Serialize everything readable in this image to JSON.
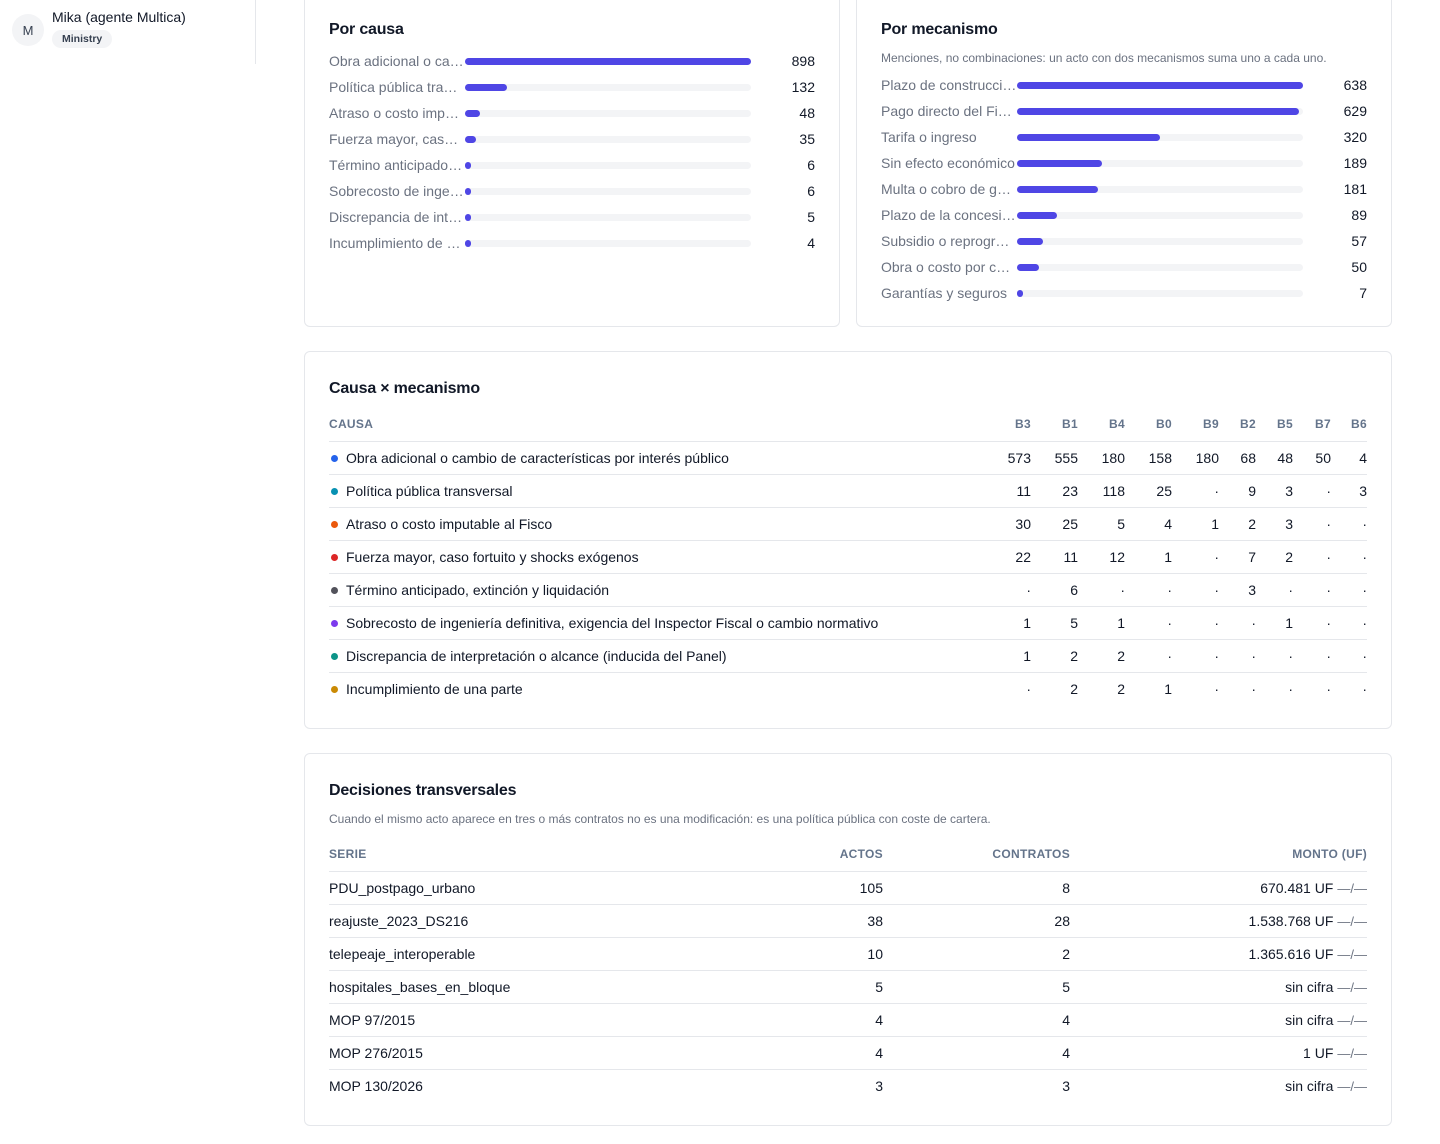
{
  "user": {
    "avatar_initial": "M",
    "name": "Mika (agente Multica)",
    "role": "Ministry"
  },
  "por_causa": {
    "title": "Por causa",
    "items": [
      {
        "label": "Obra adicional o cambio de características por interés público",
        "value": 898
      },
      {
        "label": "Política pública transversal",
        "value": 132
      },
      {
        "label": "Atraso o costo imputable al Fisco",
        "value": 48
      },
      {
        "label": "Fuerza mayor, caso fortuito y shocks exógenos",
        "value": 35
      },
      {
        "label": "Término anticipado, extinción y liquidación",
        "value": 6
      },
      {
        "label": "Sobrecosto de ingeniería definitiva",
        "value": 6
      },
      {
        "label": "Discrepancia de interpretación o alcance",
        "value": 5
      },
      {
        "label": "Incumplimiento de una parte",
        "value": 4
      }
    ]
  },
  "por_mecanismo": {
    "title": "Por mecanismo",
    "subtitle": "Menciones, no combinaciones: un acto con dos mecanismos suma uno a cada uno.",
    "items": [
      {
        "label": "Plazo de construcción",
        "value": 638
      },
      {
        "label": "Pago directo del Fisco",
        "value": 629
      },
      {
        "label": "Tarifa o ingreso",
        "value": 320
      },
      {
        "label": "Sin efecto económico",
        "value": 189
      },
      {
        "label": "Multa o cobro de garantía",
        "value": 181
      },
      {
        "label": "Plazo de la concesión",
        "value": 89
      },
      {
        "label": "Subsidio o reprogramación",
        "value": 57
      },
      {
        "label": "Obra o costo por cuenta del concesionario",
        "value": 50
      },
      {
        "label": "Garantías y seguros",
        "value": 7
      }
    ]
  },
  "matriz": {
    "title": "Causa × mecanismo",
    "header_causa": "CAUSA",
    "columns": [
      "B3",
      "B1",
      "B4",
      "B0",
      "B9",
      "B2",
      "B5",
      "B7",
      "B6"
    ],
    "rows": [
      {
        "color": "#2563eb",
        "label": "Obra adicional o cambio de características por interés público",
        "cells": [
          "573",
          "555",
          "180",
          "158",
          "180",
          "68",
          "48",
          "50",
          "4"
        ]
      },
      {
        "color": "#0891b2",
        "label": "Política pública transversal",
        "cells": [
          "11",
          "23",
          "118",
          "25",
          "·",
          "9",
          "3",
          "·",
          "3"
        ]
      },
      {
        "color": "#ea580c",
        "label": "Atraso o costo imputable al Fisco",
        "cells": [
          "30",
          "25",
          "5",
          "4",
          "1",
          "2",
          "3",
          "·",
          "·"
        ]
      },
      {
        "color": "#dc2626",
        "label": "Fuerza mayor, caso fortuito y shocks exógenos",
        "cells": [
          "22",
          "11",
          "12",
          "1",
          "·",
          "7",
          "2",
          "·",
          "·"
        ]
      },
      {
        "color": "#52525b",
        "label": "Término anticipado, extinción y liquidación",
        "cells": [
          "·",
          "6",
          "·",
          "·",
          "·",
          "3",
          "·",
          "·",
          "·"
        ]
      },
      {
        "color": "#7c3aed",
        "label": "Sobrecosto de ingeniería definitiva, exigencia del Inspector Fiscal o cambio normativo",
        "cells": [
          "1",
          "5",
          "1",
          "·",
          "·",
          "·",
          "1",
          "·",
          "·"
        ]
      },
      {
        "color": "#0d9488",
        "label": "Discrepancia de interpretación o alcance (inducida del Panel)",
        "cells": [
          "1",
          "2",
          "2",
          "·",
          "·",
          "·",
          "·",
          "·",
          "·"
        ]
      },
      {
        "color": "#ca8a04",
        "label": "Incumplimiento de una parte",
        "cells": [
          "·",
          "2",
          "2",
          "1",
          "·",
          "·",
          "·",
          "·",
          "·"
        ]
      }
    ]
  },
  "transversales": {
    "title": "Decisiones transversales",
    "subtitle": "Cuando el mismo acto aparece en tres o más contratos no es una modificación: es una política pública con coste de cartera.",
    "headers": {
      "serie": "SERIE",
      "actos": "ACTOS",
      "contratos": "CONTRATOS",
      "monto": "MONTO (UF)"
    },
    "rows": [
      {
        "serie": "PDU_postpago_urbano",
        "actos": "105",
        "contratos": "8",
        "monto": "670.481 UF",
        "dash": "—/—"
      },
      {
        "serie": "reajuste_2023_DS216",
        "actos": "38",
        "contratos": "28",
        "monto": "1.538.768 UF",
        "dash": "—/—"
      },
      {
        "serie": "telepeaje_interoperable",
        "actos": "10",
        "contratos": "2",
        "monto": "1.365.616 UF",
        "dash": "—/—"
      },
      {
        "serie": "hospitales_bases_en_bloque",
        "actos": "5",
        "contratos": "5",
        "monto": "sin cifra",
        "dash": "—/—"
      },
      {
        "serie": "MOP 97/2015",
        "actos": "4",
        "contratos": "4",
        "monto": "sin cifra",
        "dash": "—/—"
      },
      {
        "serie": "MOP 276/2015",
        "actos": "4",
        "contratos": "4",
        "monto": "1 UF",
        "dash": "—/—"
      },
      {
        "serie": "MOP 130/2026",
        "actos": "3",
        "contratos": "3",
        "monto": "sin cifra",
        "dash": "—/—"
      }
    ]
  }
}
